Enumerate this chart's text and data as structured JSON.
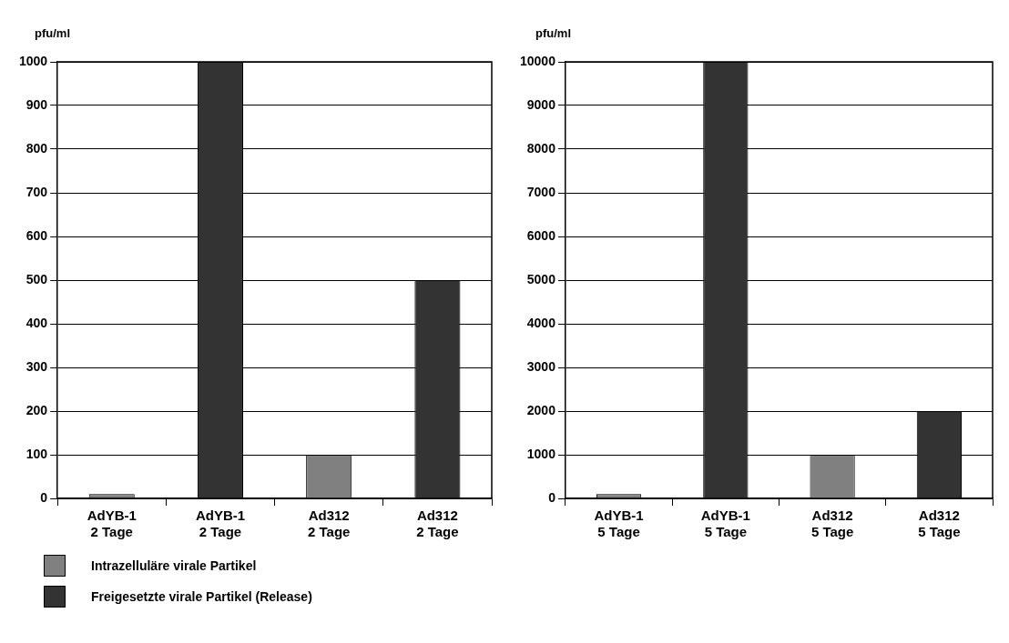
{
  "chart_data": [
    {
      "type": "bar",
      "ylabel": "pfu/ml",
      "categories": [
        "AdYB-1\n2 Tage",
        "AdYB-1\n2 Tage",
        "Ad312\n2 Tage",
        "Ad312\n2 Tage"
      ],
      "series": [
        {
          "name": "Intrazelluläre virale Partikel",
          "color": "#808080",
          "values": [
            10,
            null,
            100,
            null
          ]
        },
        {
          "name": "Freigesetzte virale Partikel (Release)",
          "color": "#333333",
          "values": [
            null,
            1000,
            null,
            500
          ]
        }
      ],
      "ylim": [
        0,
        1000
      ],
      "yticks": [
        0,
        100,
        200,
        300,
        400,
        500,
        600,
        700,
        800,
        900,
        1000
      ],
      "grid": "y",
      "legend": "bottom left"
    },
    {
      "type": "bar",
      "ylabel": "pfu/ml",
      "categories": [
        "AdYB-1\n5 Tage",
        "AdYB-1\n5 Tage",
        "Ad312\n5 Tage",
        "Ad312\n5 Tage"
      ],
      "series": [
        {
          "color": "#808080",
          "values": [
            100,
            null,
            1000,
            null
          ]
        },
        {
          "color": "#333333",
          "values": [
            null,
            10000,
            null,
            2000
          ]
        }
      ],
      "ylim": [
        0,
        10000
      ],
      "yticks": [
        0,
        1000,
        2000,
        3000,
        4000,
        5000,
        6000,
        7000,
        8000,
        9000,
        10000
      ],
      "grid": "y"
    }
  ]
}
